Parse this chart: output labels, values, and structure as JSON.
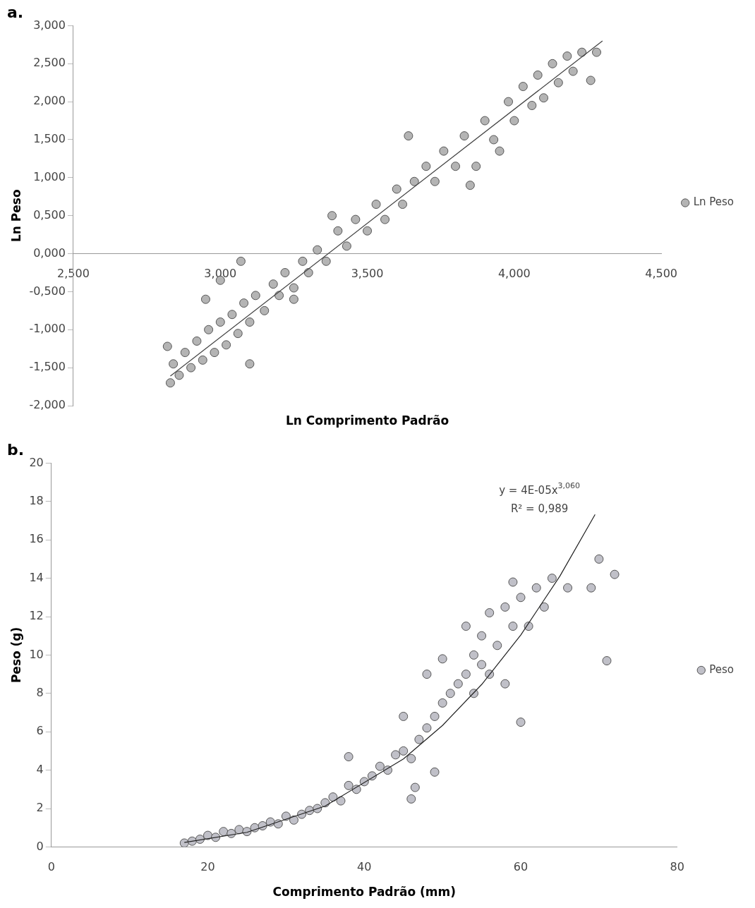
{
  "chart_data": [
    {
      "type": "scatter",
      "title": "a.",
      "xlabel": "Ln Comprimento Padrão",
      "ylabel": "Ln Peso",
      "xlim": [
        2.5,
        4.5
      ],
      "xticks": [
        {
          "value": 2.5,
          "label": "2,500"
        },
        {
          "value": 3,
          "label": "3,000"
        },
        {
          "value": 3.5,
          "label": "3,500"
        },
        {
          "value": 4,
          "label": "4,000"
        },
        {
          "value": 4.5,
          "label": "4,500"
        }
      ],
      "ylim": [
        -2,
        3
      ],
      "yticks": [
        {
          "value": -2,
          "label": "-2,000"
        },
        {
          "value": -1.5,
          "label": "-1,500"
        },
        {
          "value": -1,
          "label": "-1,000"
        },
        {
          "value": -0.5,
          "label": "-0,500"
        },
        {
          "value": 0,
          "label": "0,000"
        },
        {
          "value": 0.5,
          "label": "0,500"
        },
        {
          "value": 1,
          "label": "1,000"
        },
        {
          "value": 1.5,
          "label": "1,500"
        },
        {
          "value": 2,
          "label": "2,000"
        },
        {
          "value": 2.5,
          "label": "2,500"
        },
        {
          "value": 3,
          "label": "3,000"
        }
      ],
      "grid": false,
      "legend": "right",
      "series": [
        {
          "name": "Ln Peso",
          "marker": "circle",
          "color": "#b4b4b4",
          "x": [
            2.83,
            2.84,
            2.86,
            2.88,
            2.9,
            2.92,
            2.94,
            2.96,
            2.98,
            3.0,
            3.02,
            3.04,
            3.06,
            3.08,
            3.1,
            3.12,
            3.15,
            3.18,
            3.2,
            3.22,
            3.25,
            3.28,
            3.3,
            3.33,
            3.36,
            3.4,
            3.43,
            3.46,
            3.5,
            3.53,
            3.56,
            3.6,
            3.62,
            3.64,
            3.66,
            3.7,
            3.73,
            3.76,
            3.8,
            3.83,
            3.85,
            3.87,
            3.9,
            3.93,
            3.95,
            3.98,
            4.0,
            4.03,
            4.06,
            4.08,
            4.1,
            4.13,
            4.15,
            4.18,
            4.2,
            4.23,
            4.26,
            4.28,
            2.82,
            2.95,
            3.0,
            3.07,
            3.1,
            3.25,
            3.38
          ],
          "values": [
            -1.7,
            -1.45,
            -1.6,
            -1.3,
            -1.5,
            -1.15,
            -1.4,
            -1.0,
            -1.3,
            -0.9,
            -1.2,
            -0.8,
            -1.05,
            -0.65,
            -0.9,
            -0.55,
            -0.75,
            -0.4,
            -0.55,
            -0.25,
            -0.45,
            -0.1,
            -0.25,
            0.05,
            -0.1,
            0.3,
            0.1,
            0.45,
            0.3,
            0.65,
            0.45,
            0.85,
            0.65,
            1.55,
            0.95,
            1.15,
            0.95,
            1.35,
            1.15,
            1.55,
            0.9,
            1.15,
            1.75,
            1.5,
            1.35,
            2.0,
            1.75,
            2.2,
            1.95,
            2.35,
            2.05,
            2.5,
            2.25,
            2.6,
            2.4,
            2.65,
            2.28,
            2.65,
            -1.22,
            -0.6,
            -0.35,
            -0.1,
            -1.45,
            -0.6,
            0.5
          ]
        },
        {
          "type": "line",
          "marker": "none",
          "color": "#404040",
          "x": [
            2.83,
            4.3
          ],
          "values": [
            -1.61,
            2.8
          ]
        }
      ]
    },
    {
      "type": "scatter",
      "title": "b.",
      "xlabel": "Comprimento Padrão (mm)",
      "ylabel": "Peso (g)",
      "xlim": [
        0,
        80
      ],
      "xticks": [
        0,
        20,
        40,
        60,
        80
      ],
      "ylim": [
        0,
        20
      ],
      "yticks": [
        0,
        2,
        4,
        6,
        8,
        10,
        12,
        14,
        16,
        18,
        20
      ],
      "grid": false,
      "legend": "right",
      "annotations": [
        "y = 4E-05x$^{3,060}$",
        "R² = 0,989"
      ],
      "series": [
        {
          "name": "Peso",
          "marker": "circle",
          "color": "#c0c0c8",
          "x": [
            17,
            18,
            19,
            20,
            21,
            22,
            23,
            24,
            25,
            26,
            27,
            28,
            29,
            30,
            31,
            32,
            33,
            34,
            35,
            36,
            37,
            38,
            38,
            39,
            40,
            41,
            42,
            43,
            44,
            45,
            45,
            46,
            46,
            46.5,
            47,
            48,
            48,
            49,
            49,
            50,
            50,
            51,
            52,
            53,
            53,
            54,
            54,
            55,
            55,
            56,
            56,
            57,
            58,
            58,
            59,
            59,
            60,
            60,
            61,
            62,
            63,
            64,
            66,
            70,
            71,
            72,
            69
          ],
          "values": [
            0.2,
            0.3,
            0.4,
            0.6,
            0.5,
            0.8,
            0.7,
            0.9,
            0.8,
            1.0,
            1.1,
            1.3,
            1.2,
            1.6,
            1.4,
            1.7,
            1.9,
            2.0,
            2.3,
            2.6,
            2.4,
            3.2,
            4.7,
            3.0,
            3.4,
            3.7,
            4.2,
            4.0,
            4.8,
            5.0,
            6.8,
            4.6,
            2.5,
            3.1,
            5.6,
            6.2,
            9.0,
            6.8,
            3.9,
            7.5,
            9.8,
            8.0,
            8.5,
            9.0,
            11.5,
            10.0,
            8.0,
            11.0,
            9.5,
            12.2,
            9.0,
            10.5,
            12.5,
            8.5,
            11.5,
            13.8,
            13.0,
            6.5,
            11.5,
            13.5,
            12.5,
            14.0,
            13.5,
            15.0,
            9.7,
            14.2,
            13.5
          ]
        },
        {
          "type": "line",
          "marker": "none",
          "color": "#202020",
          "x": [
            17,
            25,
            35,
            45,
            50,
            55,
            60,
            65,
            69.5
          ],
          "values": [
            0.23,
            0.76,
            2.13,
            4.58,
            6.33,
            8.46,
            11.04,
            14.11,
            17.32
          ]
        }
      ]
    }
  ]
}
